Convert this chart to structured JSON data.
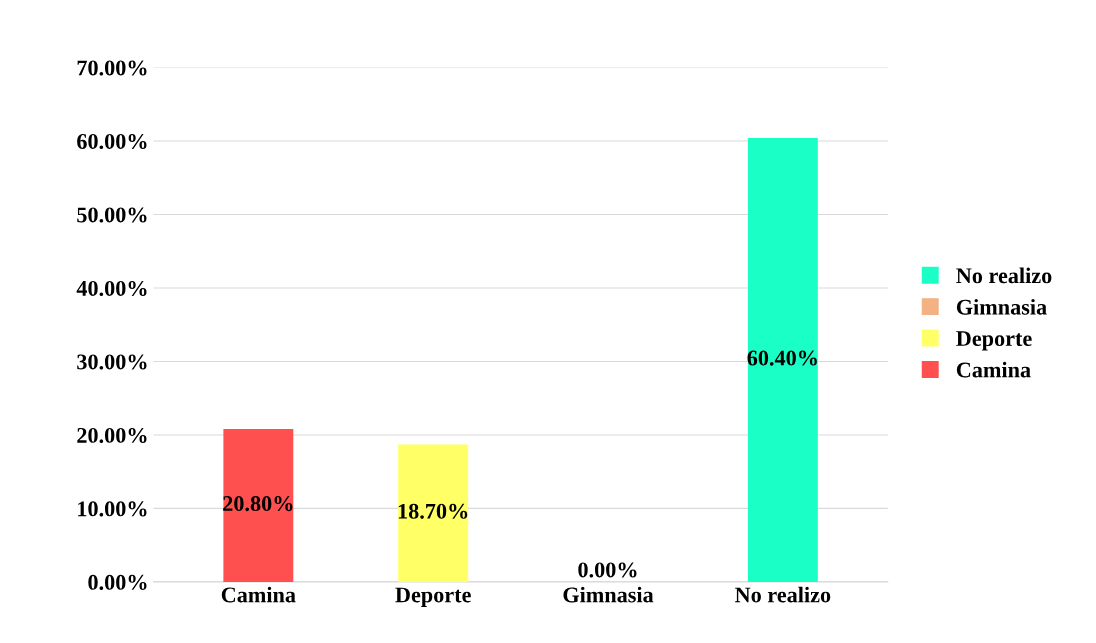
{
  "chart_data": {
    "type": "bar",
    "categories": [
      "Camina",
      "Deporte",
      "Gimnasia",
      "No realizo"
    ],
    "series": [
      {
        "name": "Camina",
        "color": "#ff5050",
        "values": [
          20.8,
          null,
          null,
          null
        ],
        "value_labels": [
          "20.80%",
          null,
          null,
          null
        ]
      },
      {
        "name": "Deporte",
        "color": "#ffff66",
        "values": [
          null,
          18.7,
          null,
          null
        ],
        "value_labels": [
          null,
          "18.70%",
          null,
          null
        ]
      },
      {
        "name": "Gimnasia",
        "color": "#f4b183",
        "values": [
          null,
          null,
          0,
          null
        ],
        "value_labels": [
          null,
          null,
          "0.00%",
          null
        ]
      },
      {
        "name": "No realizo",
        "color": "#1affc6",
        "values": [
          null,
          null,
          null,
          60.4
        ],
        "value_labels": [
          null,
          null,
          null,
          "60.40%"
        ]
      }
    ],
    "ylim": [
      0,
      70
    ],
    "yticks": [
      {
        "value": 0,
        "label": "0.00%"
      },
      {
        "value": 10,
        "label": "10.00%"
      },
      {
        "value": 20,
        "label": "20.00%"
      },
      {
        "value": 30,
        "label": "30.00%"
      },
      {
        "value": 40,
        "label": "40.00%"
      },
      {
        "value": 50,
        "label": "50.00%"
      },
      {
        "value": 60,
        "label": "60.00%"
      },
      {
        "value": 70,
        "label": "70.00%"
      }
    ],
    "grid": "y",
    "legend": "right"
  }
}
